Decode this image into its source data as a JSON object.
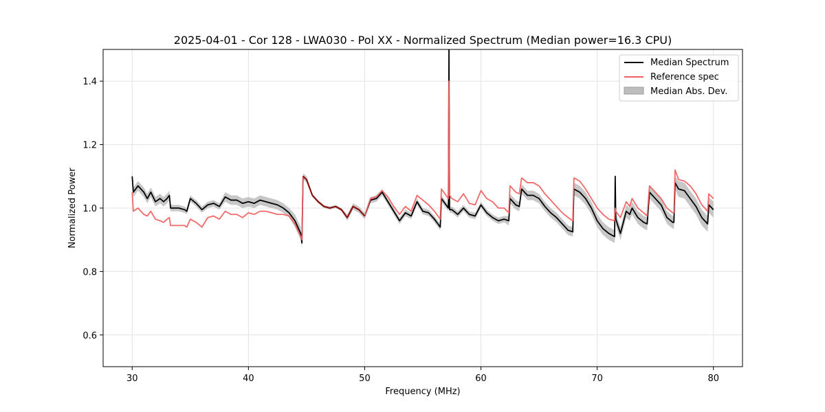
{
  "chart_data": {
    "type": "line",
    "title": "2025-04-01 - Cor 128 - LWA030 - Pol XX - Normalized Spectrum (Median power=16.3 CPU)",
    "xlabel": "Frequency (MHz)",
    "ylabel": "Normalized Power",
    "xlim": [
      27.5,
      82.5
    ],
    "ylim": [
      0.5,
      1.5
    ],
    "xticks": [
      30,
      40,
      50,
      60,
      70,
      80
    ],
    "yticks": [
      0.6,
      0.8,
      1.0,
      1.2,
      1.4
    ],
    "grid": true,
    "legend_position": "top-right",
    "legend": [
      "Median Spectrum",
      "Reference spec",
      "Median Abs. Dev."
    ],
    "colors": {
      "median": "#000000",
      "reference": "#f06060",
      "band": "#bdbdbd",
      "overlap": "#8b0000"
    },
    "series": [
      {
        "name": "Median Spectrum",
        "x": [
          30.0,
          30.1,
          30.5,
          31.0,
          31.3,
          31.6,
          32.0,
          32.4,
          32.7,
          33.0,
          33.2,
          33.3,
          34.0,
          34.5,
          34.7,
          35.0,
          35.5,
          36.0,
          36.5,
          37.0,
          37.5,
          38.0,
          38.5,
          39.0,
          39.5,
          40.0,
          40.5,
          41.0,
          41.5,
          42.0,
          42.5,
          43.0,
          43.5,
          44.0,
          44.5,
          44.6,
          44.7,
          45.0,
          45.5,
          46.0,
          46.5,
          47.0,
          47.5,
          48.0,
          48.5,
          49.0,
          49.5,
          50.0,
          50.5,
          51.0,
          51.5,
          52.0,
          52.5,
          53.0,
          53.5,
          54.0,
          54.5,
          55.0,
          55.5,
          56.0,
          56.5,
          56.6,
          57.0,
          57.2,
          57.25,
          57.3,
          57.5,
          58.0,
          58.5,
          59.0,
          59.5,
          60.0,
          60.5,
          61.0,
          61.5,
          62.0,
          62.4,
          62.5,
          63.0,
          63.3,
          63.5,
          64.0,
          64.5,
          65.0,
          65.5,
          66.0,
          66.5,
          67.0,
          67.5,
          67.9,
          68.0,
          68.5,
          69.0,
          69.5,
          70.0,
          70.5,
          71.0,
          71.5,
          71.55,
          71.6,
          72.0,
          72.5,
          72.8,
          73.0,
          73.5,
          74.0,
          74.3,
          74.5,
          75.0,
          75.5,
          76.0,
          76.5,
          76.6,
          76.7,
          77.0,
          77.5,
          78.0,
          78.5,
          79.0,
          79.5,
          79.6,
          80.0
        ],
        "values": [
          1.1,
          1.05,
          1.07,
          1.05,
          1.03,
          1.05,
          1.02,
          1.03,
          1.02,
          1.03,
          1.04,
          1.0,
          1.0,
          0.995,
          0.99,
          1.03,
          1.015,
          0.995,
          1.01,
          1.015,
          1.005,
          1.035,
          1.025,
          1.025,
          1.015,
          1.02,
          1.015,
          1.025,
          1.02,
          1.015,
          1.01,
          1.0,
          0.985,
          0.96,
          0.92,
          0.89,
          1.1,
          1.09,
          1.04,
          1.02,
          1.005,
          1.0,
          1.005,
          0.995,
          0.97,
          1.005,
          0.995,
          0.975,
          1.025,
          1.03,
          1.05,
          1.02,
          0.99,
          0.96,
          0.985,
          0.975,
          1.02,
          0.99,
          0.985,
          0.965,
          0.94,
          1.03,
          1.01,
          1.0,
          1.5,
          0.995,
          0.995,
          0.98,
          1.0,
          0.98,
          0.975,
          1.01,
          0.985,
          0.97,
          0.96,
          0.965,
          0.96,
          1.03,
          1.01,
          1.005,
          1.06,
          1.04,
          1.04,
          1.03,
          1.005,
          0.985,
          0.97,
          0.95,
          0.93,
          0.925,
          1.06,
          1.05,
          1.03,
          1.0,
          0.96,
          0.935,
          0.92,
          0.91,
          1.1,
          0.965,
          0.92,
          0.99,
          0.98,
          1.0,
          0.97,
          0.955,
          0.95,
          1.05,
          1.03,
          1.01,
          0.97,
          0.955,
          0.955,
          1.08,
          1.06,
          1.055,
          1.03,
          1.005,
          0.97,
          0.95,
          1.01,
          0.995
        ]
      },
      {
        "name": "Reference spec",
        "x": [
          30.0,
          30.1,
          30.5,
          31.0,
          31.3,
          31.6,
          32.0,
          32.4,
          32.7,
          33.0,
          33.2,
          33.3,
          34.0,
          34.5,
          34.7,
          35.0,
          35.5,
          36.0,
          36.5,
          37.0,
          37.5,
          38.0,
          38.5,
          39.0,
          39.5,
          40.0,
          40.5,
          41.0,
          41.5,
          42.0,
          42.5,
          43.0,
          43.5,
          44.0,
          44.5,
          44.6,
          44.7,
          45.0,
          45.5,
          46.0,
          46.5,
          47.0,
          47.5,
          48.0,
          48.5,
          49.0,
          49.5,
          50.0,
          50.5,
          51.0,
          51.5,
          52.0,
          52.5,
          53.0,
          53.5,
          54.0,
          54.5,
          55.0,
          55.5,
          56.0,
          56.5,
          56.6,
          57.0,
          57.2,
          57.25,
          57.3,
          57.5,
          58.0,
          58.5,
          59.0,
          59.5,
          60.0,
          60.5,
          61.0,
          61.5,
          62.0,
          62.4,
          62.5,
          63.0,
          63.3,
          63.5,
          64.0,
          64.5,
          65.0,
          65.5,
          66.0,
          66.5,
          67.0,
          67.5,
          67.9,
          68.0,
          68.5,
          69.0,
          69.5,
          70.0,
          70.5,
          71.0,
          71.5,
          71.55,
          71.6,
          72.0,
          72.5,
          72.8,
          73.0,
          73.5,
          74.0,
          74.3,
          74.5,
          75.0,
          75.5,
          76.0,
          76.5,
          76.6,
          76.7,
          77.0,
          77.5,
          78.0,
          78.5,
          79.0,
          79.5,
          79.6,
          80.0
        ],
        "values": [
          1.05,
          0.99,
          1.0,
          0.98,
          0.975,
          0.99,
          0.965,
          0.96,
          0.955,
          0.965,
          0.97,
          0.945,
          0.945,
          0.945,
          0.94,
          0.965,
          0.955,
          0.94,
          0.97,
          0.975,
          0.965,
          0.99,
          0.98,
          0.98,
          0.97,
          0.985,
          0.98,
          0.99,
          0.99,
          0.985,
          0.98,
          0.98,
          0.975,
          0.95,
          0.91,
          0.9,
          1.1,
          1.09,
          1.04,
          1.02,
          1.005,
          1.0,
          1.005,
          0.995,
          0.97,
          1.005,
          0.995,
          0.975,
          1.03,
          1.035,
          1.055,
          1.035,
          1.005,
          0.98,
          1.005,
          0.99,
          1.04,
          1.025,
          1.01,
          0.99,
          0.965,
          1.06,
          1.04,
          1.03,
          1.4,
          1.04,
          1.03,
          1.02,
          1.045,
          1.015,
          1.01,
          1.055,
          1.03,
          1.02,
          1.0,
          1.0,
          0.985,
          1.07,
          1.05,
          1.045,
          1.095,
          1.08,
          1.08,
          1.07,
          1.045,
          1.025,
          1.005,
          0.985,
          0.97,
          0.96,
          1.095,
          1.085,
          1.06,
          1.03,
          1.0,
          0.98,
          0.965,
          0.96,
          1.0,
          0.99,
          0.97,
          1.02,
          1.005,
          1.03,
          1.0,
          0.985,
          0.975,
          1.07,
          1.05,
          1.03,
          1.0,
          0.985,
          0.985,
          1.12,
          1.09,
          1.085,
          1.07,
          1.045,
          1.01,
          0.99,
          1.045,
          1.03
        ]
      }
    ],
    "band": {
      "name": "Median Abs. Dev.",
      "x": [
        30.0,
        30.1,
        30.5,
        31.0,
        31.3,
        31.6,
        32.0,
        32.4,
        32.7,
        33.0,
        33.2,
        33.3,
        34.0,
        34.5,
        34.7,
        35.0,
        35.5,
        36.0,
        36.5,
        37.0,
        37.5,
        38.0,
        38.5,
        39.0,
        39.5,
        40.0,
        40.5,
        41.0,
        41.5,
        42.0,
        42.5,
        43.0,
        43.5,
        44.0,
        44.5,
        44.6,
        44.7,
        45.0,
        45.5,
        46.0,
        46.5,
        47.0,
        47.5,
        48.0,
        48.5,
        49.0,
        49.5,
        50.0,
        50.5,
        51.0,
        51.5,
        52.0,
        52.5,
        53.0,
        53.5,
        54.0,
        54.5,
        55.0,
        55.5,
        56.0,
        56.5,
        56.6,
        57.0,
        57.2,
        57.25,
        57.3,
        57.5,
        58.0,
        58.5,
        59.0,
        59.5,
        60.0,
        60.5,
        61.0,
        61.5,
        62.0,
        62.4,
        62.5,
        63.0,
        63.3,
        63.5,
        64.0,
        64.5,
        65.0,
        65.5,
        66.0,
        66.5,
        67.0,
        67.5,
        67.9,
        68.0,
        68.5,
        69.0,
        69.5,
        70.0,
        70.5,
        71.0,
        71.5,
        71.55,
        71.6,
        72.0,
        72.5,
        72.8,
        73.0,
        73.5,
        74.0,
        74.3,
        74.5,
        75.0,
        75.5,
        76.0,
        76.5,
        76.6,
        76.7,
        77.0,
        77.5,
        78.0,
        78.5,
        79.0,
        79.5,
        79.6,
        80.0
      ],
      "lower": [
        1.08,
        1.035,
        1.055,
        1.035,
        1.015,
        1.035,
        1.005,
        1.015,
        1.005,
        1.015,
        1.025,
        0.99,
        0.99,
        0.985,
        0.98,
        1.02,
        1.005,
        0.985,
        1.0,
        1.005,
        0.995,
        1.02,
        1.01,
        1.01,
        1.0,
        1.005,
        1.0,
        1.01,
        1.005,
        1.0,
        0.995,
        0.985,
        0.97,
        0.94,
        0.9,
        0.875,
        1.09,
        1.08,
        1.035,
        1.015,
        1.0,
        0.995,
        1.0,
        0.99,
        0.96,
        0.995,
        0.985,
        0.965,
        1.015,
        1.02,
        1.04,
        1.01,
        0.98,
        0.95,
        0.975,
        0.965,
        1.01,
        0.98,
        0.975,
        0.955,
        0.93,
        1.02,
        1.0,
        0.99,
        1.49,
        0.985,
        0.985,
        0.97,
        0.99,
        0.97,
        0.965,
        1.0,
        0.975,
        0.96,
        0.95,
        0.955,
        0.945,
        1.015,
        0.995,
        0.99,
        1.045,
        1.025,
        1.025,
        1.015,
        0.99,
        0.97,
        0.955,
        0.935,
        0.915,
        0.91,
        1.04,
        1.03,
        1.01,
        0.98,
        0.94,
        0.915,
        0.9,
        0.89,
        1.08,
        0.945,
        0.9,
        0.97,
        0.96,
        0.98,
        0.95,
        0.935,
        0.93,
        1.03,
        1.01,
        0.99,
        0.95,
        0.935,
        0.935,
        1.06,
        1.035,
        1.03,
        1.005,
        0.98,
        0.945,
        0.925,
        0.985,
        0.97
      ],
      "upper": [
        1.12,
        1.065,
        1.085,
        1.065,
        1.045,
        1.065,
        1.035,
        1.045,
        1.035,
        1.045,
        1.055,
        1.01,
        1.01,
        1.005,
        1.0,
        1.04,
        1.025,
        1.005,
        1.02,
        1.025,
        1.015,
        1.05,
        1.04,
        1.04,
        1.03,
        1.035,
        1.03,
        1.04,
        1.035,
        1.03,
        1.025,
        1.015,
        1.0,
        0.98,
        0.94,
        0.905,
        1.11,
        1.1,
        1.045,
        1.025,
        1.01,
        1.005,
        1.01,
        1.0,
        0.98,
        1.015,
        1.005,
        0.985,
        1.035,
        1.04,
        1.06,
        1.03,
        1.0,
        0.97,
        0.995,
        0.985,
        1.03,
        1.0,
        0.995,
        0.975,
        0.95,
        1.04,
        1.02,
        1.01,
        1.51,
        1.005,
        1.005,
        0.99,
        1.01,
        0.99,
        0.985,
        1.02,
        0.995,
        0.98,
        0.97,
        0.975,
        0.975,
        1.045,
        1.025,
        1.02,
        1.075,
        1.055,
        1.055,
        1.045,
        1.02,
        1.0,
        0.985,
        0.965,
        0.945,
        0.94,
        1.08,
        1.07,
        1.05,
        1.02,
        0.98,
        0.955,
        0.94,
        0.93,
        1.12,
        0.985,
        0.94,
        1.01,
        1.0,
        1.02,
        0.99,
        0.975,
        0.97,
        1.07,
        1.05,
        1.03,
        0.99,
        0.975,
        0.975,
        1.1,
        1.085,
        1.08,
        1.055,
        1.03,
        0.995,
        0.975,
        1.035,
        1.02
      ]
    }
  }
}
